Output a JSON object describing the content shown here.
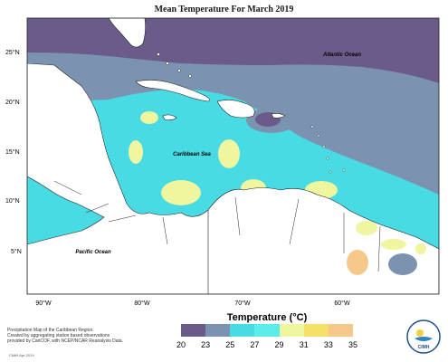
{
  "title": "Mean Temperature For March 2019",
  "lat_labels": [
    "25°N",
    "20°N",
    "15°N",
    "10°N",
    "5°N"
  ],
  "lon_labels": [
    "90°W",
    "80°W",
    "70°W",
    "60°W"
  ],
  "place_labels": {
    "atlantic": "Atlantic Ocean",
    "caribbean": "Caribbean Sea",
    "pacific": "Pacific Ocean"
  },
  "legend": {
    "title": "Temperature (°C)",
    "ticks": [
      "20",
      "23",
      "25",
      "27",
      "29",
      "31",
      "33",
      "35"
    ],
    "colors": [
      "#6b5b8a",
      "#7b93b0",
      "#48dbe4",
      "#5cecec",
      "#f0f5a0",
      "#f5e06a",
      "#f6c98a"
    ]
  },
  "credit": {
    "line1": "Precipitation Map of the Caribbean Region.",
    "line2": "Created by aggregating station based observations",
    "line3": "provided by CariCOF, with NCEP/NCAR Reanalysis Data."
  },
  "stamp": "CIMH Apr-2019",
  "logo_text": "CIMH"
}
